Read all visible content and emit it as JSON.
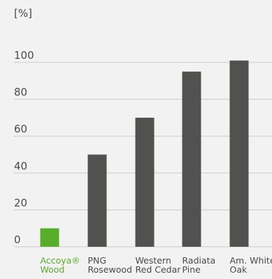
{
  "chart_data": {
    "type": "bar",
    "ylabel": "[%]",
    "categories": [
      [
        "Accoya®",
        "Wood"
      ],
      [
        "PNG",
        "Rosewood"
      ],
      [
        "Western",
        "Red Cedar"
      ],
      [
        "Radiata",
        "Pine"
      ],
      [
        "Am. White",
        "Oak"
      ]
    ],
    "values": [
      10,
      50,
      70,
      95,
      101
    ],
    "ylim": [
      0,
      100
    ],
    "yticks": [
      0,
      20,
      40,
      60,
      80,
      100
    ],
    "grid": true,
    "colors": {
      "highlight": "#5aac2b",
      "bar": "#515150",
      "grid": "#c9c9c9",
      "text": "#4a4a4a"
    },
    "highlight_index": 0
  }
}
